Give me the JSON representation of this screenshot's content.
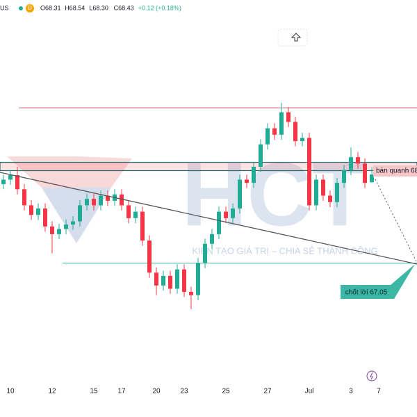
{
  "chart_data": {
    "type": "candlestick",
    "header": {
      "symbol": "US",
      "interval": "D",
      "items": [
        "O68.31",
        "H68.54",
        "L68.30",
        "C68.43",
        "+0.12 (+0.18%)"
      ]
    },
    "watermark": {
      "logo": "HCT",
      "slogan": "KIẾN TẠO GIÁ TRỊ – CHIA SẺ THÀNH CÔNG"
    },
    "annotations": {
      "sell": "bán quanh 68",
      "target": "chốt lời 67.05"
    },
    "categories": [
      null,
      "10",
      null,
      null,
      null,
      null,
      null,
      "12",
      null,
      null,
      null,
      null,
      null,
      "15",
      null,
      null,
      null,
      "17",
      null,
      null,
      null,
      null,
      "20",
      null,
      null,
      null,
      "23",
      null,
      null,
      null,
      null,
      null,
      "25",
      null,
      null,
      null,
      null,
      null,
      "27",
      null,
      null,
      null,
      null,
      null,
      "Jul",
      null,
      null,
      null,
      null,
      null,
      "3",
      null,
      null,
      null,
      "7"
    ],
    "open": [
      68.28,
      68.35,
      68.42,
      68.2,
      67.95,
      67.8,
      67.9,
      67.62,
      67.5,
      67.58,
      67.65,
      67.7,
      67.95,
      68.05,
      67.95,
      68.1,
      68.02,
      68.12,
      67.95,
      67.75,
      67.85,
      67.4,
      66.9,
      66.7,
      66.85,
      66.65,
      66.95,
      66.6,
      66.55,
      67.05,
      67.35,
      67.5,
      67.85,
      67.75,
      67.9,
      68.35,
      68.3,
      68.55,
      68.9,
      69.15,
      69.05,
      69.4,
      69.25,
      68.95,
      69.0,
      67.95,
      68.35,
      68.1,
      68.0,
      68.3,
      68.5,
      68.7,
      68.6,
      68.31,
      null
    ],
    "high": [
      68.43,
      68.5,
      68.55,
      68.28,
      68.03,
      67.98,
      67.98,
      67.7,
      67.66,
      67.73,
      67.78,
      68.03,
      68.13,
      68.13,
      68.18,
      68.18,
      68.2,
      68.2,
      68.03,
      67.93,
      67.93,
      67.48,
      66.98,
      66.93,
      66.93,
      67.03,
      67.03,
      66.68,
      67.13,
      67.43,
      67.58,
      67.93,
      67.93,
      67.98,
      68.43,
      68.43,
      68.63,
      68.98,
      69.23,
      69.23,
      69.55,
      69.48,
      69.33,
      69.08,
      69.08,
      68.43,
      68.43,
      68.18,
      68.38,
      68.58,
      68.85,
      68.78,
      68.68,
      68.54,
      null
    ],
    "low": [
      68.2,
      68.27,
      68.12,
      67.87,
      67.72,
      67.72,
      67.54,
      67.2,
      67.42,
      67.5,
      67.57,
      67.62,
      67.87,
      67.87,
      67.87,
      67.94,
      67.94,
      67.87,
      67.67,
      67.67,
      67.32,
      66.82,
      66.55,
      66.62,
      66.57,
      66.57,
      66.52,
      66.33,
      66.47,
      66.97,
      67.27,
      67.42,
      67.67,
      67.67,
      67.82,
      68.22,
      68.22,
      68.47,
      68.82,
      68.97,
      68.97,
      69.17,
      68.87,
      68.87,
      67.87,
      67.87,
      68.02,
      67.92,
      67.92,
      68.22,
      68.42,
      68.52,
      68.22,
      68.3,
      null
    ],
    "close": [
      68.35,
      68.42,
      68.2,
      67.95,
      67.8,
      67.9,
      67.62,
      67.5,
      67.58,
      67.65,
      67.7,
      67.95,
      68.05,
      67.95,
      68.1,
      68.02,
      68.12,
      67.95,
      67.75,
      67.85,
      67.4,
      66.9,
      66.7,
      66.85,
      66.65,
      66.95,
      66.6,
      66.55,
      67.05,
      67.35,
      67.5,
      67.85,
      67.75,
      67.9,
      68.35,
      68.3,
      68.55,
      68.9,
      69.15,
      69.05,
      69.4,
      69.25,
      68.95,
      69.0,
      67.95,
      68.35,
      68.1,
      68.0,
      68.3,
      68.5,
      68.7,
      68.6,
      68.3,
      68.43,
      null
    ],
    "up_color": "#22ab94",
    "down_color": "#f23645",
    "levels": [
      69.47,
      67.05
    ],
    "zone": [
      68.49,
      68.62
    ],
    "ylim": [
      65.3,
      71.15
    ]
  }
}
